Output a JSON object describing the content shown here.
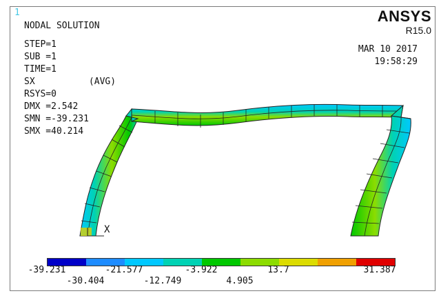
{
  "window": {
    "number": "1"
  },
  "brand": {
    "name": "ANSYS",
    "version": "R15.0"
  },
  "plot": {
    "title": "NODAL SOLUTION",
    "stats": [
      "STEP=1",
      "SUB =1",
      "TIME=1",
      "SX          (AVG)",
      "RSYS=0",
      "DMX =2.542",
      "SMN =-39.231",
      "SMX =40.214"
    ],
    "date": "MAR 10 2017",
    "time": "19:58:29",
    "axis_label": "X"
  },
  "legend": {
    "colors": [
      "#0000c8",
      "#1e8cff",
      "#00c8ff",
      "#00d2b4",
      "#00c800",
      "#8cdc00",
      "#dcdc00",
      "#f0a000",
      "#e00000"
    ],
    "ticks_top": [
      "-39.231",
      "-21.577",
      "-3.922",
      "13.7",
      "31.387"
    ],
    "ticks_bottom": [
      "-30.404",
      "-12.749",
      "4.905"
    ]
  }
}
